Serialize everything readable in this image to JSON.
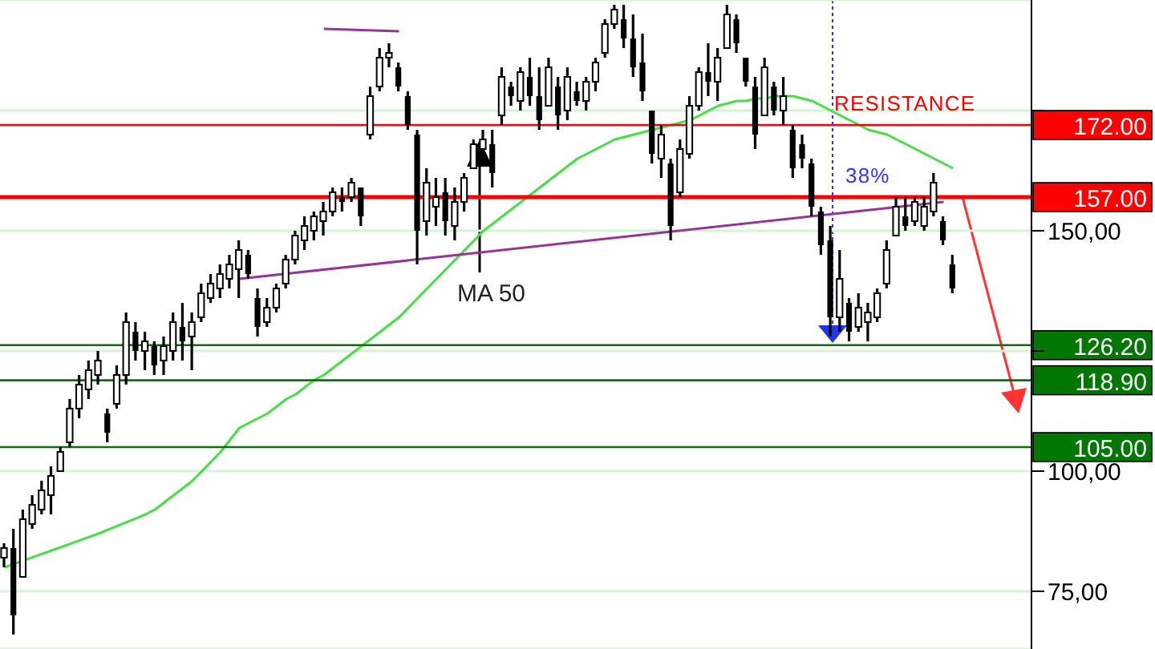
{
  "chart_data": {
    "type": "candlestick",
    "categories": [
      null,
      null,
      null,
      null,
      null,
      null,
      null,
      null,
      null,
      null,
      null,
      null,
      null,
      null,
      null,
      null,
      null,
      null,
      null,
      null,
      null,
      null,
      null,
      null,
      null,
      null,
      null,
      null,
      null,
      null,
      null,
      null,
      null,
      null,
      null,
      null,
      null,
      null,
      null,
      null,
      null,
      null,
      null,
      null,
      null,
      null,
      null,
      null,
      null,
      null,
      null,
      null,
      null,
      null,
      null,
      null,
      null,
      null,
      null,
      null,
      null,
      null,
      null,
      null,
      null,
      null,
      null,
      null,
      null,
      null,
      null,
      null,
      null,
      null,
      null,
      null,
      null,
      null,
      null,
      null,
      null,
      null,
      null,
      null,
      null,
      null,
      null,
      null,
      null,
      null,
      null,
      null,
      null,
      null,
      null,
      null,
      null,
      null,
      null,
      null,
      null,
      null
    ],
    "ohlc": [
      [
        82,
        85,
        80,
        84
      ],
      [
        84,
        88,
        66,
        70
      ],
      [
        78,
        92,
        78,
        90
      ],
      [
        89,
        95,
        88,
        93
      ],
      [
        92,
        98,
        91,
        96
      ],
      [
        95,
        101,
        91,
        99
      ],
      [
        100,
        105,
        100,
        104
      ],
      [
        106,
        115,
        105,
        113
      ],
      [
        113,
        120,
        111,
        118
      ],
      [
        117,
        123,
        115,
        121
      ],
      [
        120,
        125,
        118,
        123
      ],
      [
        112,
        113,
        106,
        108
      ],
      [
        114,
        122,
        113,
        120
      ],
      [
        120,
        133,
        118,
        131
      ],
      [
        129,
        131,
        123,
        125
      ],
      [
        125,
        129,
        121,
        127
      ],
      [
        126,
        127,
        120,
        122
      ],
      [
        123,
        128,
        120,
        126
      ],
      [
        125,
        133,
        123,
        131
      ],
      [
        130,
        135,
        123,
        127
      ],
      [
        128,
        133,
        121,
        131
      ],
      [
        132,
        139,
        131,
        137
      ],
      [
        136,
        141,
        135,
        139
      ],
      [
        138,
        143,
        136,
        141
      ],
      [
        140,
        145,
        138,
        143
      ],
      [
        142,
        148,
        136,
        146
      ],
      [
        145,
        146,
        140,
        141
      ],
      [
        136,
        138,
        128,
        130
      ],
      [
        131,
        136,
        130,
        134
      ],
      [
        134,
        139,
        133,
        138
      ],
      [
        139,
        145,
        138,
        144
      ],
      [
        144,
        150,
        143,
        149
      ],
      [
        148,
        153,
        146,
        151
      ],
      [
        150,
        154,
        148,
        153
      ],
      [
        152,
        156,
        149,
        154
      ],
      [
        154,
        159,
        153,
        158
      ],
      [
        157,
        159,
        154,
        156
      ],
      [
        157,
        161,
        156,
        160
      ],
      [
        159,
        159,
        151,
        153
      ],
      [
        170,
        180,
        169,
        178
      ],
      [
        180,
        188,
        179,
        186
      ],
      [
        186,
        189,
        184,
        187
      ],
      [
        184,
        185,
        179,
        180
      ],
      [
        178,
        179,
        171,
        172
      ],
      [
        170,
        171,
        143,
        150
      ],
      [
        152,
        163,
        149,
        160
      ],
      [
        155,
        161,
        151,
        157
      ],
      [
        158,
        161,
        149,
        152
      ],
      [
        151,
        159,
        148,
        156
      ],
      [
        156,
        162,
        154,
        161
      ],
      [
        163,
        169,
        163,
        168
      ],
      [
        167,
        171,
        164,
        169
      ],
      [
        168,
        171,
        159,
        162
      ],
      [
        174,
        184,
        172,
        182
      ],
      [
        180,
        181,
        176,
        178
      ],
      [
        177,
        184,
        175,
        183
      ],
      [
        182,
        186,
        176,
        178
      ],
      [
        178,
        184,
        171,
        173
      ],
      [
        176,
        186,
        176,
        184
      ],
      [
        180,
        182,
        171,
        174
      ],
      [
        175,
        184,
        173,
        182
      ],
      [
        179,
        181,
        176,
        177
      ],
      [
        177,
        182,
        175,
        181
      ],
      [
        181,
        186,
        179,
        185
      ],
      [
        187,
        194,
        186,
        193
      ],
      [
        193,
        197,
        192,
        196
      ],
      [
        194,
        197,
        188,
        190
      ],
      [
        190,
        195,
        182,
        184
      ],
      [
        185,
        191,
        177,
        179
      ],
      [
        175,
        175,
        164,
        166
      ],
      [
        165,
        172,
        161,
        170
      ],
      [
        164,
        165,
        148,
        151
      ],
      [
        158,
        169,
        157,
        167
      ],
      [
        166,
        178,
        165,
        176
      ],
      [
        176,
        184,
        175,
        183
      ],
      [
        183,
        189,
        178,
        181
      ],
      [
        181,
        188,
        177,
        186
      ],
      [
        188,
        197,
        188,
        195
      ],
      [
        194,
        195,
        187,
        189
      ],
      [
        186,
        186,
        180,
        181
      ],
      [
        180,
        182,
        167,
        170
      ],
      [
        174,
        186,
        174,
        184
      ],
      [
        180,
        181,
        174,
        175
      ],
      [
        175,
        182,
        172,
        178
      ],
      [
        171,
        172,
        161,
        163
      ],
      [
        168,
        170,
        163,
        165
      ],
      [
        164,
        165,
        153,
        155
      ],
      [
        154,
        155,
        145,
        147
      ],
      [
        148,
        151,
        128,
        132
      ],
      [
        132,
        146,
        129,
        140
      ],
      [
        135,
        136,
        127,
        129
      ],
      [
        130,
        137,
        129,
        134
      ],
      [
        131,
        135,
        127,
        133
      ],
      [
        132,
        138,
        131,
        137
      ],
      [
        139,
        148,
        138,
        146
      ],
      [
        149,
        157,
        149,
        155
      ],
      [
        153,
        157,
        150,
        151
      ],
      [
        152,
        157,
        151,
        156
      ],
      [
        151,
        157,
        150,
        155
      ],
      [
        154,
        162,
        153,
        160
      ],
      [
        152,
        153,
        147,
        148
      ],
      [
        143,
        145,
        137,
        138
      ]
    ],
    "color": "#000000",
    "series": [
      {
        "name": "MA 50",
        "type": "line",
        "color": "#44e044",
        "values": [
          80,
          80.7,
          81.4,
          82.1,
          82.8,
          83.5,
          84.2,
          84.9,
          85.6,
          86.3,
          87,
          87.8,
          88.6,
          89.4,
          90.2,
          91,
          92,
          93.5,
          95,
          96.5,
          98,
          100,
          102,
          104,
          106.5,
          109,
          110,
          111,
          112,
          113.5,
          115,
          116,
          117.5,
          119,
          120,
          121.5,
          123,
          124.5,
          126,
          127.5,
          129,
          130.5,
          132,
          134,
          136,
          138,
          140,
          142,
          144,
          146,
          148,
          150,
          151.5,
          153,
          154.5,
          156,
          157.5,
          159,
          160.5,
          162,
          163.5,
          165,
          166,
          167,
          168,
          169,
          169.5,
          170,
          170.5,
          171,
          171.5,
          172,
          172.5,
          173,
          174,
          175,
          176,
          176.5,
          177,
          177,
          177.5,
          177.5,
          178,
          178,
          178,
          177.5,
          177,
          176,
          175,
          174,
          173,
          172,
          171,
          170.5,
          170,
          169,
          168,
          167,
          166,
          165,
          164,
          163
        ]
      },
      {
        "type": "line",
        "color": "#993399",
        "values": [
          null,
          null,
          null,
          null,
          null,
          null,
          null,
          null,
          null,
          null,
          null,
          null,
          null,
          null,
          null,
          null,
          null,
          null,
          null,
          null,
          null,
          null,
          null,
          null,
          null,
          140,
          null,
          null,
          null,
          null,
          null,
          null,
          null,
          null,
          null,
          null,
          null,
          null,
          null,
          null,
          null,
          null,
          null,
          null,
          null,
          null,
          null,
          null,
          null,
          null,
          null,
          null,
          null,
          null,
          null,
          null,
          null,
          null,
          null,
          null,
          null,
          null,
          null,
          null,
          null,
          null,
          null,
          null,
          null,
          null,
          null,
          null,
          null,
          null,
          null,
          null,
          null,
          null,
          null,
          null,
          null,
          null,
          null,
          null,
          null,
          null,
          null,
          null,
          null,
          null,
          null,
          null,
          null,
          null,
          null,
          null,
          null,
          null,
          null,
          null,
          156,
          null
        ]
      },
      {
        "type": "line",
        "color": "#993399",
        "values": [
          null,
          null,
          null,
          null,
          null,
          null,
          null,
          null,
          null,
          null,
          null,
          null,
          null,
          null,
          null,
          null,
          null,
          null,
          null,
          null,
          null,
          null,
          null,
          null,
          null,
          null,
          null,
          null,
          null,
          null,
          null,
          null,
          null,
          null,
          192,
          null,
          null,
          null,
          null,
          null,
          null,
          null,
          191.5,
          null,
          null,
          null,
          null,
          null,
          null,
          null,
          null,
          null,
          null,
          null,
          null,
          null,
          null,
          null,
          null,
          null,
          null,
          null,
          null,
          null,
          null,
          null,
          null,
          null,
          null,
          null,
          null,
          null,
          null,
          null,
          null,
          null,
          null,
          null,
          null,
          null,
          null,
          null,
          null,
          null,
          null,
          null,
          null,
          null,
          null,
          null,
          null,
          null,
          null,
          null,
          null,
          null,
          null,
          null,
          null,
          null,
          null,
          null
        ]
      }
    ],
    "ylim": [
      63,
      198
    ],
    "yticks": [
      {
        "value": 75,
        "label": "75,00"
      },
      {
        "value": 100,
        "label": "100,00"
      },
      {
        "value": 125,
        "label": null
      },
      {
        "value": 150,
        "label": "150,00"
      },
      {
        "value": 175,
        "label": null
      }
    ],
    "grid": "y",
    "tick_labels": "y",
    "ref_lines": [
      {
        "axis": "y",
        "value": 172,
        "label": "172.00",
        "color": "#ff0000"
      },
      {
        "axis": "y",
        "value": 157,
        "label": "157.00",
        "color": "#ff0000"
      },
      {
        "axis": "y",
        "value": 126.2,
        "label": "126.20",
        "color": "#007700"
      },
      {
        "axis": "y",
        "value": 118.9,
        "label": "118.90",
        "color": "#007700"
      },
      {
        "axis": "y",
        "value": 105,
        "label": "105.00",
        "color": "#007700"
      }
    ],
    "annotations": [
      "RESISTANCE",
      "38%"
    ]
  }
}
